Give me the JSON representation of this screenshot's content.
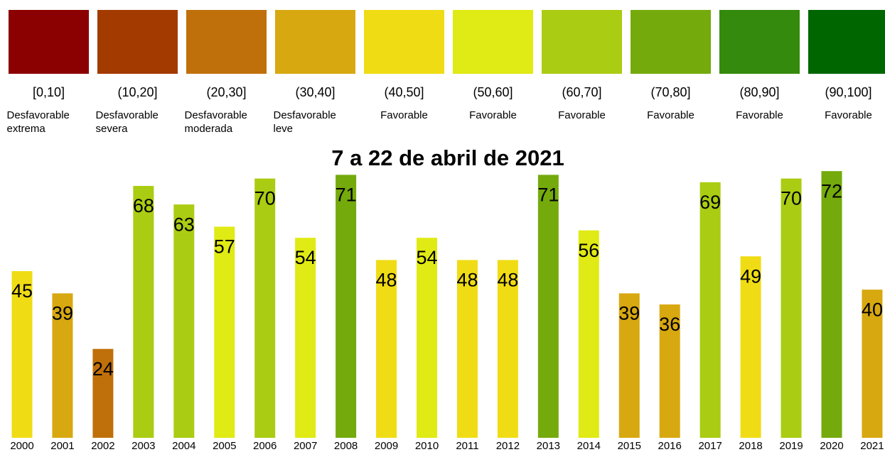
{
  "chart_data": {
    "type": "bar",
    "title": "7 a 22 de abril de 2021",
    "legend": [
      {
        "range": "[0,10]",
        "label": "Desfavorable extrema",
        "color": "#8b0000"
      },
      {
        "range": "(10,20]",
        "label": "Desfavorable severa",
        "color": "#a33a00"
      },
      {
        "range": "(20,30]",
        "label": "Desfavorable moderada",
        "color": "#c0700a"
      },
      {
        "range": "(30,40]",
        "label": "Desfavorable leve",
        "color": "#d8a810"
      },
      {
        "range": "(40,50]",
        "label": "Favorable",
        "color": "#f0dc14"
      },
      {
        "range": "(50,60]",
        "label": "Favorable",
        "color": "#e0ea14"
      },
      {
        "range": "(60,70]",
        "label": "Favorable",
        "color": "#aacc12"
      },
      {
        "range": "(70,80]",
        "label": "Favorable",
        "color": "#74aa0c"
      },
      {
        "range": "(80,90]",
        "label": "Favorable",
        "color": "#348a0c"
      },
      {
        "range": "(90,100]",
        "label": "Favorable",
        "color": "#006600"
      }
    ],
    "categories": [
      "2000",
      "2001",
      "2002",
      "2003",
      "2004",
      "2005",
      "2006",
      "2007",
      "2008",
      "2009",
      "2010",
      "2011",
      "2012",
      "2013",
      "2014",
      "2015",
      "2016",
      "2017",
      "2018",
      "2019",
      "2020",
      "2021"
    ],
    "values": [
      45,
      39,
      24,
      68,
      63,
      57,
      70,
      54,
      71,
      48,
      54,
      48,
      48,
      71,
      56,
      39,
      36,
      69,
      49,
      70,
      72,
      40
    ],
    "colors": [
      "#f0dc14",
      "#d8a810",
      "#c0700a",
      "#aacc12",
      "#aacc12",
      "#e0ea14",
      "#aacc12",
      "#e0ea14",
      "#74aa0c",
      "#f0dc14",
      "#e0ea14",
      "#f0dc14",
      "#f0dc14",
      "#74aa0c",
      "#e0ea14",
      "#d8a810",
      "#d8a810",
      "#aacc12",
      "#f0dc14",
      "#aacc12",
      "#74aa0c",
      "#d8a810"
    ]
  }
}
